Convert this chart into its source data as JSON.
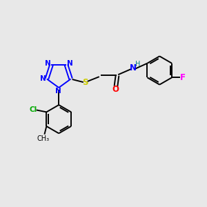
{
  "background_color": "#e8e8e8",
  "bond_color": "#000000",
  "N_color": "#0000ff",
  "S_color": "#cccc00",
  "O_color": "#ff0000",
  "NH_color": "#0000ff",
  "H_color": "#008080",
  "F_color": "#ff00ff",
  "Cl_color": "#00aa00",
  "figsize": [
    3.0,
    3.0
  ],
  "dpi": 100,
  "xlim": [
    0,
    10
  ],
  "ylim": [
    0,
    10
  ]
}
